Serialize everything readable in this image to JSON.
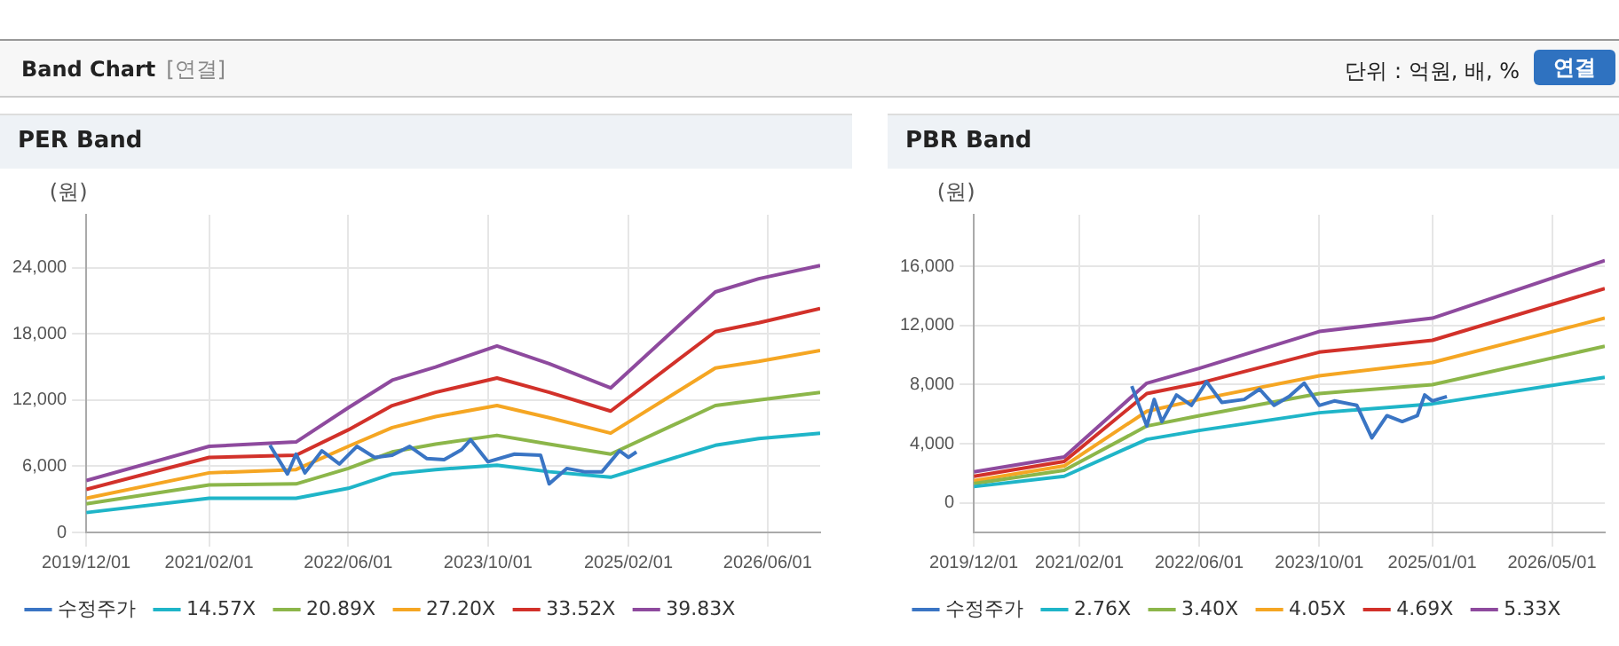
{
  "chart_data": [
    {
      "type": "line",
      "title": "PER Band",
      "ylabel": "(원)",
      "annotations": [
        "Band Chart",
        "[연결]",
        "단위 : 억원, 배, %",
        "연결"
      ],
      "xlim": [
        "2019-12-01",
        "2026-12-01"
      ],
      "xticks": [
        {
          "value": "2019-12-01",
          "label": "2019/12/01"
        },
        {
          "value": "2021-02-01",
          "label": "2021/02/01"
        },
        {
          "value": "2022-06-01",
          "label": "2022/06/01"
        },
        {
          "value": "2023-10-01",
          "label": "2023/10/01"
        },
        {
          "value": "2025-02-01",
          "label": "2025/02/01"
        },
        {
          "value": "2026-06-01",
          "label": "2026/06/01"
        }
      ],
      "ylim": [
        0,
        28800
      ],
      "yticks": [
        0,
        {
          "value": 6000,
          "label": "6,000"
        },
        {
          "value": 12000,
          "label": "12,000"
        },
        {
          "value": 18000,
          "label": "18,000"
        },
        {
          "value": 24000,
          "label": "24,000"
        }
      ],
      "grid": true,
      "legend": "bottom",
      "marker": "none",
      "series": [
        {
          "name": "수정주가",
          "color": "#3a75c4",
          "x": [
            "2021-09",
            "2021-11",
            "2021-12",
            "2022-01",
            "2022-03",
            "2022-05",
            "2022-07",
            "2022-09",
            "2022-11",
            "2023-01",
            "2023-03",
            "2023-05",
            "2023-07",
            "2023-08",
            "2023-10",
            "2024-01",
            "2024-04",
            "2024-05",
            "2024-07",
            "2024-09",
            "2024-11",
            "2025-01",
            "2025-02",
            "2025-03"
          ],
          "values": [
            7900,
            5300,
            7100,
            5400,
            7400,
            6200,
            7800,
            6800,
            7000,
            7800,
            6700,
            6600,
            7500,
            8400,
            6400,
            7100,
            7000,
            4400,
            5800,
            5500,
            5500,
            7400,
            6800,
            7300
          ]
        },
        {
          "name": "14.57X",
          "color": "#1fb5c8",
          "x": [
            "2019-12",
            "2021-02",
            "2021-12",
            "2022-06",
            "2022-11",
            "2023-04",
            "2023-11",
            "2024-05",
            "2024-12",
            "2025-12",
            "2026-05",
            "2026-12"
          ],
          "values": [
            1800,
            3100,
            3100,
            4000,
            5300,
            5700,
            6100,
            5500,
            5000,
            7900,
            8500,
            9000
          ]
        },
        {
          "name": "20.89X",
          "color": "#8cb64a",
          "x": [
            "2019-12",
            "2021-02",
            "2021-12",
            "2022-06",
            "2022-11",
            "2023-04",
            "2023-11",
            "2024-05",
            "2024-12",
            "2025-12",
            "2026-05",
            "2026-12"
          ],
          "values": [
            2600,
            4300,
            4400,
            5800,
            7300,
            8000,
            8800,
            8000,
            7100,
            11500,
            12000,
            12700
          ]
        },
        {
          "name": "27.20X",
          "color": "#f5a623",
          "x": [
            "2019-12",
            "2021-02",
            "2021-12",
            "2022-06",
            "2022-11",
            "2023-04",
            "2023-11",
            "2024-05",
            "2024-12",
            "2025-12",
            "2026-05",
            "2026-12"
          ],
          "values": [
            3100,
            5400,
            5700,
            7800,
            9500,
            10500,
            11500,
            10400,
            9000,
            14900,
            15500,
            16500
          ]
        },
        {
          "name": "33.52X",
          "color": "#d2312a",
          "x": [
            "2019-12",
            "2021-02",
            "2021-12",
            "2022-06",
            "2022-11",
            "2023-04",
            "2023-11",
            "2024-05",
            "2024-12",
            "2025-12",
            "2026-05",
            "2026-12"
          ],
          "values": [
            3900,
            6800,
            7000,
            9300,
            11500,
            12700,
            14000,
            12700,
            11000,
            18200,
            19000,
            20300
          ]
        },
        {
          "name": "39.83X",
          "color": "#8e4a9e",
          "x": [
            "2019-12",
            "2021-02",
            "2021-12",
            "2022-06",
            "2022-11",
            "2023-04",
            "2023-11",
            "2024-05",
            "2024-12",
            "2025-12",
            "2026-05",
            "2026-12"
          ],
          "values": [
            4700,
            7800,
            8200,
            11300,
            13800,
            15000,
            16900,
            15300,
            13100,
            21800,
            23000,
            24200
          ]
        }
      ]
    },
    {
      "type": "line",
      "title": "PBR Band",
      "ylabel": "(원)",
      "xlim": [
        "2019-12-01",
        "2026-12-01"
      ],
      "xticks": [
        {
          "value": "2019-12-01",
          "label": "2019/12/01"
        },
        {
          "value": "2021-02-01",
          "label": "2021/02/01"
        },
        {
          "value": "2022-06-01",
          "label": "2022/06/01"
        },
        {
          "value": "2023-10-01",
          "label": "2023/10/01"
        },
        {
          "value": "2025-01-01",
          "label": "2025/01/01"
        },
        {
          "value": "2026-05-01",
          "label": "2026/05/01"
        }
      ],
      "ylim": [
        -2000,
        19500
      ],
      "yticks": [
        0,
        {
          "value": 4000,
          "label": "4,000"
        },
        {
          "value": 8000,
          "label": "8,000"
        },
        {
          "value": 12000,
          "label": "12,000"
        },
        {
          "value": 16000,
          "label": "16,000"
        }
      ],
      "grid": true,
      "legend": "bottom",
      "marker": "none",
      "series": [
        {
          "name": "수정주가",
          "color": "#3a75c4",
          "x": [
            "2021-09",
            "2021-11",
            "2021-12",
            "2022-01",
            "2022-03",
            "2022-05",
            "2022-07",
            "2022-09",
            "2022-12",
            "2023-02",
            "2023-04",
            "2023-06",
            "2023-08",
            "2023-10",
            "2023-12",
            "2024-03",
            "2024-05",
            "2024-07",
            "2024-09",
            "2024-11",
            "2024-12",
            "2025-01",
            "2025-03"
          ],
          "values": [
            7900,
            5200,
            7000,
            5500,
            7300,
            6600,
            8200,
            6800,
            7000,
            7700,
            6600,
            7200,
            8100,
            6600,
            6900,
            6600,
            4400,
            5900,
            5500,
            5900,
            7300,
            6900,
            7200
          ]
        },
        {
          "name": "2.76X",
          "color": "#1fb5c8",
          "x": [
            "2019-12",
            "2020-12",
            "2021-11",
            "2022-06",
            "2023-10",
            "2025-01",
            "2026-12"
          ],
          "values": [
            1100,
            1800,
            4300,
            4900,
            6100,
            6700,
            8500
          ]
        },
        {
          "name": "3.40X",
          "color": "#8cb64a",
          "x": [
            "2019-12",
            "2020-12",
            "2021-11",
            "2022-06",
            "2023-10",
            "2025-01",
            "2026-12"
          ],
          "values": [
            1300,
            2200,
            5200,
            5900,
            7400,
            8000,
            10600
          ]
        },
        {
          "name": "4.05X",
          "color": "#f5a623",
          "x": [
            "2019-12",
            "2020-12",
            "2021-11",
            "2022-06",
            "2023-10",
            "2025-01",
            "2026-12"
          ],
          "values": [
            1500,
            2500,
            6200,
            7000,
            8600,
            9500,
            12500
          ]
        },
        {
          "name": "4.69X",
          "color": "#d2312a",
          "x": [
            "2019-12",
            "2020-12",
            "2021-11",
            "2022-06",
            "2023-10",
            "2025-01",
            "2026-12"
          ],
          "values": [
            1800,
            2800,
            7400,
            8100,
            10200,
            11000,
            14500
          ]
        },
        {
          "name": "5.33X",
          "color": "#8e4a9e",
          "x": [
            "2019-12",
            "2020-12",
            "2021-11",
            "2022-06",
            "2023-10",
            "2025-01",
            "2026-12"
          ],
          "values": [
            2100,
            3100,
            8100,
            9100,
            11600,
            12500,
            16400
          ]
        }
      ]
    }
  ]
}
